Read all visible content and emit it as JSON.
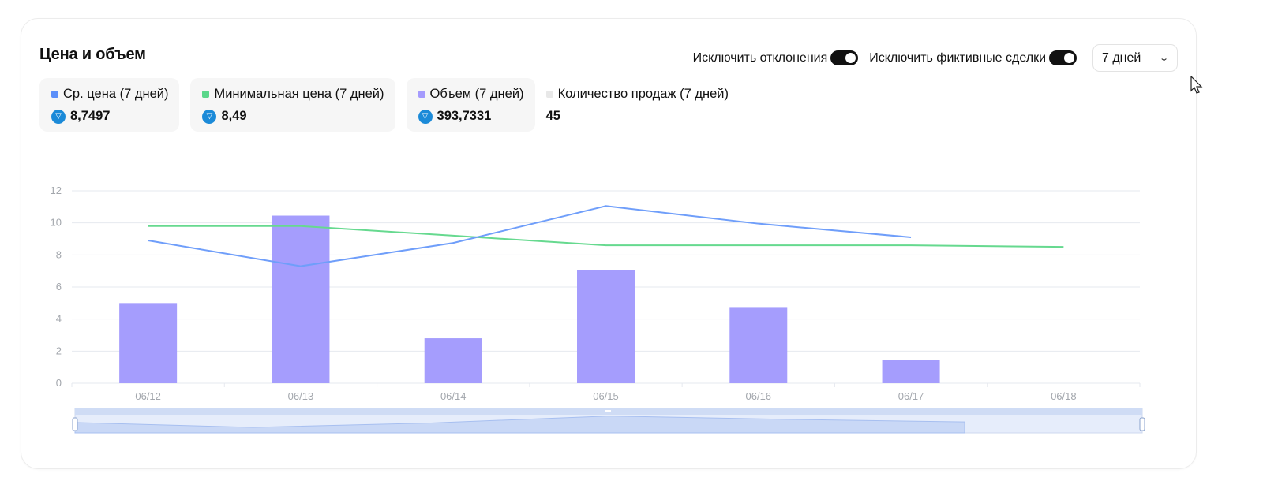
{
  "header": {
    "title": "Цена и объем",
    "toggle_outliers_label": "Исключить отклонения",
    "toggle_wash_label": "Исключить фиктивные сделки",
    "period_value": "7 дней"
  },
  "stats": [
    {
      "label": "Ср. цена (7 дней)",
      "value": "8,7497",
      "color": "#5b8ff9"
    },
    {
      "label": "Минимальная цена (7 дней)",
      "value": "8,49",
      "color": "#5ad78a"
    },
    {
      "label": "Объем (7 дней)",
      "value": "393,7331",
      "color": "#a59bfd"
    },
    {
      "label": "Количество продаж (7 дней)",
      "value": "45",
      "color": "#e8e8e8"
    }
  ],
  "colors": {
    "avg_line": "#6f9efa",
    "min_line": "#66d98f",
    "volume_bar": "#a59dfd",
    "grid": "#e6e9ef",
    "ton_icon": "#1b8ad8"
  },
  "chart_data": {
    "type": "bar",
    "categories": [
      "06/12",
      "06/13",
      "06/14",
      "06/15",
      "06/16",
      "06/17",
      "06/18"
    ],
    "series": [
      {
        "name": "Объем (7 дней)",
        "type": "bar",
        "values": [
          5.0,
          10.45,
          2.8,
          7.05,
          4.75,
          1.45,
          null
        ]
      },
      {
        "name": "Ср. цена (7 дней)",
        "type": "line",
        "values": [
          8.9,
          7.3,
          8.75,
          11.05,
          9.95,
          9.1,
          null
        ]
      },
      {
        "name": "Минимальная цена (7 дней)",
        "type": "line",
        "values": [
          9.8,
          9.8,
          9.2,
          8.6,
          8.6,
          8.6,
          8.5
        ]
      }
    ],
    "yticks": [
      0,
      2,
      4,
      6,
      8,
      10,
      12
    ],
    "ylim": [
      0,
      12
    ],
    "grid": true
  }
}
